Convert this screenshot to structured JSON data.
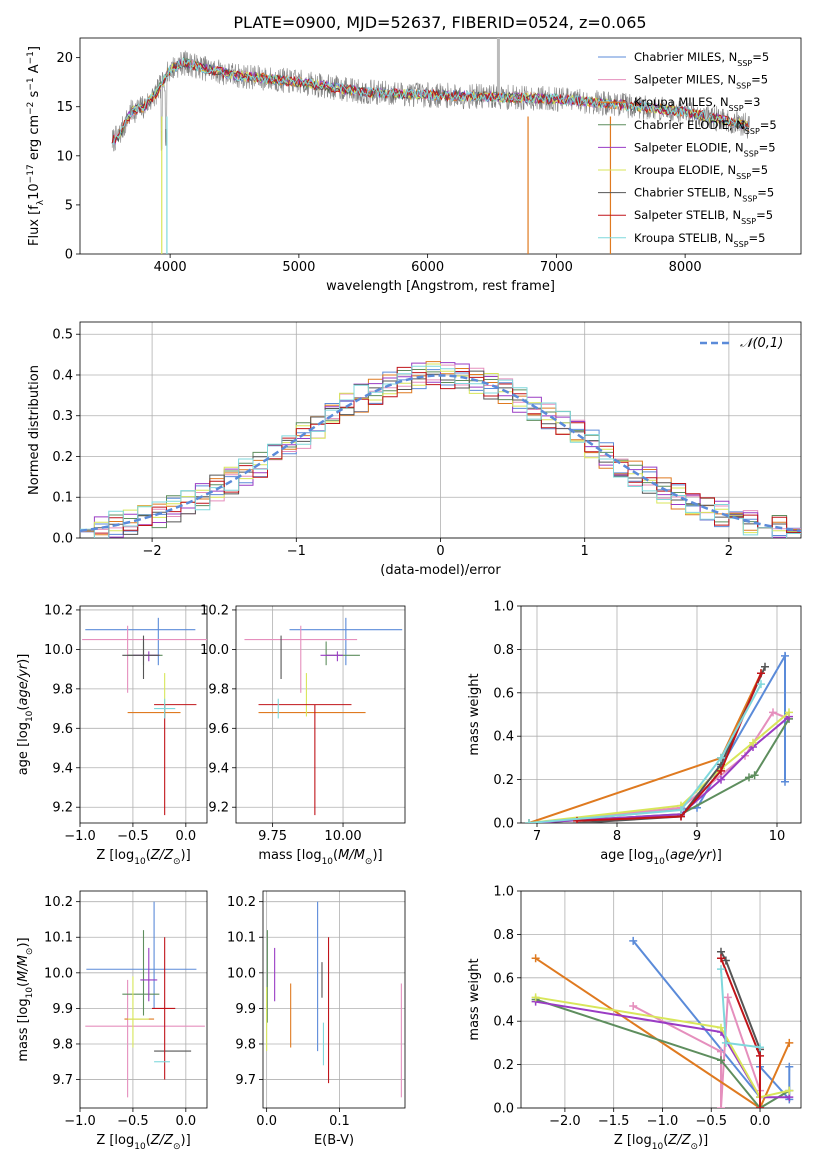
{
  "figure": {
    "title": "PLATE=0900, MJD=52637, FIBERID=0524, z=0.065"
  },
  "colors": {
    "Chabrier MILES": "#5b8bd9",
    "Salpeter MILES": "#e58fbd",
    "Kroupa MILES": "#df7a20",
    "Chabrier ELODIE": "#5e8e5e",
    "Salpeter ELODIE": "#9a3cc4",
    "Kroupa ELODIE": "#d8e65a",
    "Chabrier STELIB": "#555555",
    "Salpeter STELIB": "#c0141a",
    "Kroupa STELIB": "#7fd8dc",
    "data": "#808080"
  },
  "chart_data": [
    {
      "id": "spectrum",
      "type": "line",
      "xlabel": "wavelength [Angstrom, rest frame]",
      "ylabel": "Flux [f_λ 10^-17 erg cm^-2 s^-1 A^-1]",
      "xlim": [
        3300,
        8900
      ],
      "ylim": [
        0,
        22
      ],
      "xticks": [
        4000,
        5000,
        6000,
        7000,
        8000
      ],
      "yticks": [
        0,
        5,
        10,
        15,
        20
      ],
      "legend_position": "right",
      "legend": [
        {
          "label": "Chabrier MILES, N",
          "sub": "SSP",
          "suffix": "=5"
        },
        {
          "label": "Salpeter MILES, N",
          "sub": "SSP",
          "suffix": "=5"
        },
        {
          "label": "Kroupa MILES, N",
          "sub": "SSP",
          "suffix": "=3"
        },
        {
          "label": "Chabrier ELODIE, N",
          "sub": "SSP",
          "suffix": "=5"
        },
        {
          "label": "Salpeter ELODIE, N",
          "sub": "SSP",
          "suffix": "=5"
        },
        {
          "label": "Kroupa ELODIE, N",
          "sub": "SSP",
          "suffix": "=5"
        },
        {
          "label": "Chabrier STELIB, N",
          "sub": "SSP",
          "suffix": "=5"
        },
        {
          "label": "Salpeter STELIB, N",
          "sub": "SSP",
          "suffix": "=5"
        },
        {
          "label": "Kroupa STELIB, N",
          "sub": "SSP",
          "suffix": "=5"
        }
      ],
      "envelope": {
        "x": [
          3550,
          3600,
          3700,
          3800,
          3900,
          4000,
          4100,
          4300,
          4500,
          5000,
          5500,
          6000,
          6500,
          7000,
          7500,
          8000,
          8500
        ],
        "y": [
          11.5,
          12.0,
          14.5,
          15.0,
          16.5,
          18.8,
          19.5,
          18.8,
          18.2,
          17.5,
          16.5,
          16.2,
          16.0,
          15.8,
          15.2,
          14.5,
          13.0
        ]
      },
      "wavelength_range": [
        3550,
        8500
      ]
    },
    {
      "id": "residuals",
      "type": "histogram",
      "xlabel": "(data-model)/error",
      "ylabel": "Normed distribution",
      "xlim": [
        -2.5,
        2.5
      ],
      "ylim": [
        0,
        0.53
      ],
      "xticks": [
        -2,
        -1,
        0,
        1,
        2
      ],
      "yticks": [
        0.0,
        0.1,
        0.2,
        0.3,
        0.4,
        0.5
      ],
      "grid": true,
      "legend_position": "top-right",
      "legend": [
        "N(0,1)"
      ],
      "bin_width": 0.1
    },
    {
      "id": "age_vs_Z",
      "type": "errorbar",
      "xlabel": "Z [log10(Z/Z⊙)]",
      "ylabel": "age [log10(age/yr)]",
      "xlim": [
        -1.0,
        0.2
      ],
      "ylim": [
        9.12,
        10.22
      ],
      "xticks": [
        -1.0,
        -0.5,
        0.0
      ],
      "yticks": [
        9.2,
        9.4,
        9.6,
        9.8,
        10.0,
        10.2
      ],
      "grid": true,
      "points": [
        {
          "model": "Chabrier MILES",
          "x": -0.26,
          "xerr": [
            0.69,
            0.35
          ],
          "y": 10.1,
          "yerr": [
            0.18,
            0.06
          ]
        },
        {
          "model": "Salpeter MILES",
          "x": -0.55,
          "xerr": [
            0.43,
            0.75
          ],
          "y": 10.05,
          "yerr": [
            0.27,
            0.07
          ]
        },
        {
          "model": "Kroupa MILES",
          "x": -0.25,
          "xerr": [
            0.3,
            0.2
          ],
          "y": 9.68,
          "yerr": [
            0.0,
            0.0
          ]
        },
        {
          "model": "Chabrier ELODIE",
          "x": -0.4,
          "xerr": [
            0.15,
            0.18
          ],
          "y": 9.97,
          "yerr": [
            0.05,
            0.07
          ]
        },
        {
          "model": "Salpeter ELODIE",
          "x": -0.35,
          "xerr": [
            0.15,
            0.1
          ],
          "y": 9.97,
          "yerr": [
            0.03,
            0.02
          ]
        },
        {
          "model": "Kroupa ELODIE",
          "x": -0.2,
          "xerr": [
            0.0,
            0.0
          ],
          "y": 9.73,
          "yerr": [
            0.07,
            0.15
          ]
        },
        {
          "model": "Chabrier STELIB",
          "x": -0.4,
          "xerr": [
            0.2,
            0.15
          ],
          "y": 9.97,
          "yerr": [
            0.12,
            0.1
          ]
        },
        {
          "model": "Salpeter STELIB",
          "x": -0.2,
          "xerr": [
            0.1,
            0.3
          ],
          "y": 9.72,
          "yerr": [
            0.56,
            0.0
          ]
        },
        {
          "model": "Kroupa STELIB",
          "x": -0.2,
          "xerr": [
            0.1,
            0.1
          ],
          "y": 9.7,
          "yerr": [
            0.05,
            0.05
          ]
        }
      ]
    },
    {
      "id": "age_vs_mass",
      "type": "errorbar",
      "xlabel": "mass [log10(M/M⊙)]",
      "xlim": [
        9.62,
        10.22
      ],
      "ylim": [
        9.12,
        10.22
      ],
      "xticks": [
        9.75,
        10.0
      ],
      "yticks": [
        9.2,
        9.4,
        9.6,
        9.8,
        10.0,
        10.2
      ],
      "grid": true,
      "points": [
        {
          "model": "Chabrier MILES",
          "x": 10.01,
          "xerr": [
            0.2,
            0.2
          ],
          "y": 10.1,
          "yerr": [
            0.18,
            0.06
          ]
        },
        {
          "model": "Salpeter MILES",
          "x": 9.85,
          "xerr": [
            0.2,
            0.2
          ],
          "y": 10.05,
          "yerr": [
            0.27,
            0.07
          ]
        },
        {
          "model": "Kroupa MILES",
          "x": 9.9,
          "xerr": [
            0.2,
            0.18
          ],
          "y": 9.68,
          "yerr": [
            0.0,
            0.0
          ]
        },
        {
          "model": "Chabrier ELODIE",
          "x": 9.94,
          "xerr": [
            0.0,
            0.12
          ],
          "y": 9.97,
          "yerr": [
            0.05,
            0.07
          ]
        },
        {
          "model": "Salpeter ELODIE",
          "x": 9.98,
          "xerr": [
            0.06,
            0.02
          ],
          "y": 9.97,
          "yerr": [
            0.03,
            0.02
          ]
        },
        {
          "model": "Kroupa ELODIE",
          "x": 9.87,
          "xerr": [
            0.0,
            0.0
          ],
          "y": 9.73,
          "yerr": [
            0.07,
            0.15
          ]
        },
        {
          "model": "Chabrier STELIB",
          "x": 9.78,
          "xerr": [
            0.0,
            0.0
          ],
          "y": 9.97,
          "yerr": [
            0.12,
            0.1
          ]
        },
        {
          "model": "Salpeter STELIB",
          "x": 9.9,
          "xerr": [
            0.2,
            0.13
          ],
          "y": 9.72,
          "yerr": [
            0.56,
            0.0
          ]
        },
        {
          "model": "Kroupa STELIB",
          "x": 9.77,
          "xerr": [
            0.0,
            0.0
          ],
          "y": 9.7,
          "yerr": [
            0.05,
            0.05
          ]
        }
      ]
    },
    {
      "id": "weight_vs_age",
      "type": "line",
      "xlabel": "age [log10(age/yr)]",
      "ylabel": "mass weight",
      "xlim": [
        6.8,
        10.3
      ],
      "ylim": [
        0,
        1.0
      ],
      "xticks": [
        7,
        8,
        9,
        10
      ],
      "yticks": [
        0.0,
        0.2,
        0.4,
        0.6,
        0.8,
        1.0
      ],
      "grid": true,
      "series": [
        {
          "model": "Chabrier MILES",
          "x": [
            7.0,
            9.0,
            9.3,
            10.1,
            10.1
          ],
          "y": [
            0.0,
            0.07,
            0.26,
            0.77,
            0.19
          ]
        },
        {
          "model": "Salpeter MILES",
          "x": [
            6.9,
            8.8,
            9.6,
            9.95,
            10.15
          ],
          "y": [
            0.0,
            0.07,
            0.31,
            0.51,
            0.48
          ]
        },
        {
          "model": "Kroupa MILES",
          "x": [
            6.9,
            9.3,
            9.8
          ],
          "y": [
            0.0,
            0.3,
            0.69
          ]
        },
        {
          "model": "Chabrier ELODIE",
          "x": [
            6.9,
            8.8,
            9.65,
            9.72,
            10.15
          ],
          "y": [
            0.0,
            0.04,
            0.21,
            0.22,
            0.48
          ]
        },
        {
          "model": "Salpeter ELODIE",
          "x": [
            6.9,
            8.8,
            9.3,
            9.7,
            10.15
          ],
          "y": [
            0.0,
            0.04,
            0.2,
            0.35,
            0.49
          ]
        },
        {
          "model": "Kroupa ELODIE",
          "x": [
            6.9,
            8.8,
            9.3,
            9.7,
            10.15
          ],
          "y": [
            0.0,
            0.08,
            0.25,
            0.37,
            0.51
          ]
        },
        {
          "model": "Chabrier STELIB",
          "x": [
            7.5,
            8.8,
            9.3,
            9.85
          ],
          "y": [
            0.0,
            0.03,
            0.27,
            0.72
          ]
        },
        {
          "model": "Salpeter STELIB",
          "x": [
            7.5,
            8.8,
            9.3,
            9.8
          ],
          "y": [
            0.01,
            0.03,
            0.24,
            0.69
          ]
        },
        {
          "model": "Kroupa STELIB",
          "x": [
            6.9,
            8.8,
            9.3,
            9.8
          ],
          "y": [
            0.0,
            0.06,
            0.3,
            0.64
          ]
        }
      ]
    },
    {
      "id": "mass_vs_Z",
      "type": "errorbar",
      "xlabel": "Z [log10(Z/Z⊙)]",
      "ylabel": "mass [log10(M/M⊙)]",
      "xlim": [
        -1.0,
        0.2
      ],
      "ylim": [
        9.62,
        10.23
      ],
      "xticks": [
        -1.0,
        -0.5,
        0.0
      ],
      "yticks": [
        9.7,
        9.8,
        9.9,
        10.0,
        10.1,
        10.2
      ],
      "grid": true,
      "points": [
        {
          "model": "Chabrier MILES",
          "x": -0.3,
          "xerr": [
            0.64,
            0.4
          ],
          "y": 10.01,
          "yerr": [
            0.11,
            0.19
          ]
        },
        {
          "model": "Salpeter MILES",
          "x": -0.55,
          "xerr": [
            0.4,
            0.73
          ],
          "y": 9.85,
          "yerr": [
            0.2,
            0.13
          ]
        },
        {
          "model": "Kroupa MILES",
          "x": -0.4,
          "xerr": [
            0.18,
            0.1
          ],
          "y": 9.87,
          "yerr": [
            0.0,
            0.0
          ]
        },
        {
          "model": "Chabrier ELODIE",
          "x": -0.4,
          "xerr": [
            0.2,
            0.15
          ],
          "y": 9.94,
          "yerr": [
            0.06,
            0.18
          ]
        },
        {
          "model": "Salpeter ELODIE",
          "x": -0.35,
          "xerr": [
            0.08,
            0.08
          ],
          "y": 9.98,
          "yerr": [
            0.06,
            0.09
          ]
        },
        {
          "model": "Kroupa ELODIE",
          "x": -0.5,
          "xerr": [
            0.05,
            0.15
          ],
          "y": 9.87,
          "yerr": [
            0.08,
            0.12
          ]
        },
        {
          "model": "Chabrier STELIB",
          "x": -0.2,
          "xerr": [
            0.1,
            0.25
          ],
          "y": 9.78,
          "yerr": [
            0.0,
            0.0
          ]
        },
        {
          "model": "Salpeter STELIB",
          "x": -0.2,
          "xerr": [
            0.12,
            0.1
          ],
          "y": 9.9,
          "yerr": [
            0.2,
            0.2
          ]
        },
        {
          "model": "Kroupa STELIB",
          "x": -0.2,
          "xerr": [
            0.1,
            0.05
          ],
          "y": 9.75,
          "yerr": [
            0.0,
            0.0
          ]
        }
      ]
    },
    {
      "id": "mass_vs_ebv",
      "type": "errorbar",
      "xlabel": "E(B-V)",
      "xlim": [
        -0.005,
        0.19
      ],
      "ylim": [
        9.62,
        10.23
      ],
      "xticks": [
        0.0,
        0.1
      ],
      "yticks": [
        9.7,
        9.8,
        9.9,
        10.0,
        10.1,
        10.2
      ],
      "grid": true,
      "points": [
        {
          "model": "Chabrier MILES",
          "x": 0.07,
          "yrange": [
            9.78,
            10.2
          ]
        },
        {
          "model": "Salpeter MILES",
          "x": 0.185,
          "yrange": [
            9.65,
            9.97
          ]
        },
        {
          "model": "Kroupa MILES",
          "x": 0.033,
          "yrange": [
            9.79,
            9.97
          ]
        },
        {
          "model": "Chabrier ELODIE",
          "x": 0.001,
          "yrange": [
            9.86,
            10.12
          ]
        },
        {
          "model": "Salpeter ELODIE",
          "x": 0.011,
          "yrange": [
            9.92,
            10.07
          ]
        },
        {
          "model": "Kroupa ELODIE",
          "x": 0.0,
          "yrange": [
            9.78,
            9.96
          ]
        },
        {
          "model": "Chabrier STELIB",
          "x": 0.076,
          "yrange": [
            9.93,
            10.03
          ]
        },
        {
          "model": "Salpeter STELIB",
          "x": 0.085,
          "yrange": [
            9.69,
            10.1
          ]
        },
        {
          "model": "Kroupa STELIB",
          "x": 0.078,
          "yrange": [
            9.74,
            9.86
          ]
        }
      ]
    },
    {
      "id": "weight_vs_Z",
      "type": "line",
      "xlabel": "Z [log10(Z/Z⊙)]",
      "ylabel": "mass weight",
      "xlim": [
        -2.45,
        0.42
      ],
      "ylim": [
        0,
        1.0
      ],
      "xticks": [
        -2.0,
        -1.5,
        -1.0,
        -0.5,
        0.0
      ],
      "yticks": [
        0.0,
        0.2,
        0.4,
        0.6,
        0.8,
        1.0
      ],
      "grid": true,
      "series": [
        {
          "model": "Chabrier MILES",
          "x": [
            -1.3,
            0.0,
            0.0,
            0.3,
            0.3
          ],
          "y": [
            0.77,
            0.05,
            0.19,
            0.04,
            0.19
          ]
        },
        {
          "model": "Salpeter MILES",
          "x": [
            -1.3,
            -0.4,
            -0.4,
            -0.33,
            0.0
          ],
          "y": [
            0.47,
            0.26,
            0.0,
            0.51,
            0.08
          ]
        },
        {
          "model": "Kroupa MILES",
          "x": [
            -2.3,
            0.0,
            0.3
          ],
          "y": [
            0.69,
            0.0,
            0.3
          ]
        },
        {
          "model": "Chabrier ELODIE",
          "x": [
            -2.3,
            -0.4,
            0.0,
            0.3
          ],
          "y": [
            0.5,
            0.22,
            0.0,
            0.08
          ]
        },
        {
          "model": "Salpeter ELODIE",
          "x": [
            -2.3,
            -0.4,
            0.0,
            0.3
          ],
          "y": [
            0.49,
            0.35,
            0.05,
            0.05
          ]
        },
        {
          "model": "Kroupa ELODIE",
          "x": [
            -2.3,
            -0.4,
            0.0,
            0.3
          ],
          "y": [
            0.51,
            0.37,
            0.05,
            0.08
          ]
        },
        {
          "model": "Chabrier STELIB",
          "x": [
            -0.4,
            -0.35,
            0.0,
            0.0
          ],
          "y": [
            0.72,
            0.68,
            0.27,
            0.0
          ]
        },
        {
          "model": "Salpeter STELIB",
          "x": [
            -0.4,
            0.0,
            0.0
          ],
          "y": [
            0.69,
            0.24,
            0.0
          ]
        },
        {
          "model": "Kroupa STELIB",
          "x": [
            -0.4,
            -0.35,
            0.0
          ],
          "y": [
            0.64,
            0.3,
            0.28
          ]
        }
      ]
    }
  ]
}
